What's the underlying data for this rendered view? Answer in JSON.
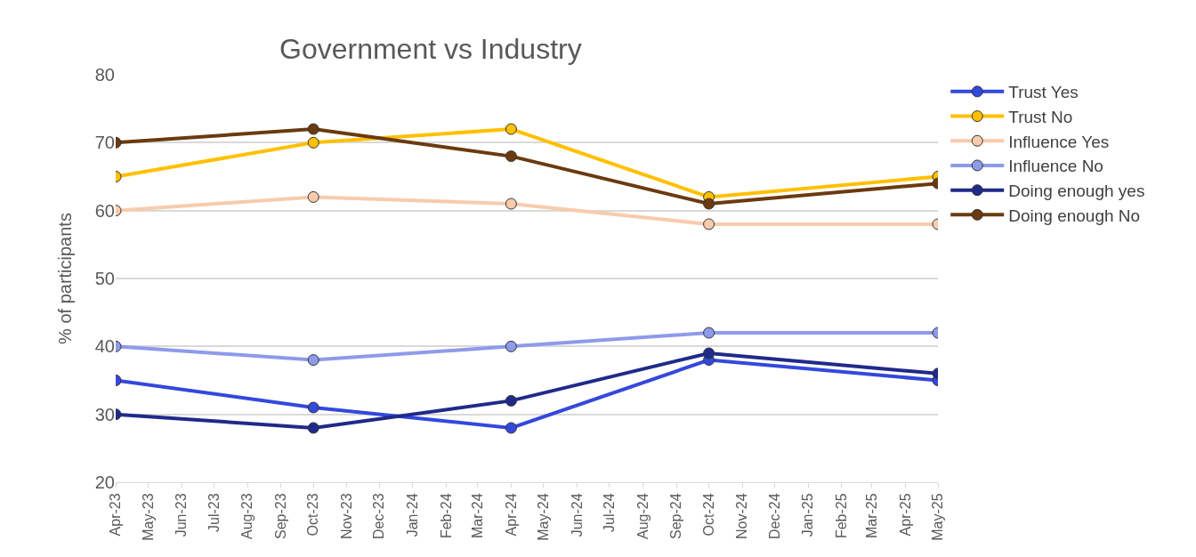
{
  "chart_data": {
    "type": "line",
    "title": "Government vs Industry",
    "ylabel": "% of participants",
    "x": [
      "2023-04",
      "2023-10",
      "2024-04",
      "2024-10",
      "2025-05"
    ],
    "series": [
      {
        "name": "Trust Yes",
        "color": "#3448dc",
        "values": [
          35,
          31,
          28,
          38,
          35
        ]
      },
      {
        "name": "Trust No",
        "color": "#ffc000",
        "values": [
          65,
          70,
          72,
          62,
          65
        ]
      },
      {
        "name": "Influence Yes",
        "color": "#f8cbad",
        "values": [
          60,
          62,
          61,
          58,
          58
        ]
      },
      {
        "name": "Influence No",
        "color": "#8e9aea",
        "values": [
          40,
          38,
          40,
          42,
          42
        ]
      },
      {
        "name": "Doing enough yes",
        "color": "#1f2a8a",
        "values": [
          30,
          28,
          32,
          39,
          36
        ]
      },
      {
        "name": "Doing enough No",
        "color": "#6b3a10",
        "values": [
          70,
          72,
          68,
          61,
          64
        ]
      }
    ],
    "xlim": [
      "2023-04",
      "2025-05"
    ],
    "xticks": [
      {
        "value": "2023-04",
        "label": "Apr-23"
      },
      {
        "value": "2023-05",
        "label": "May-23"
      },
      {
        "value": "2023-06",
        "label": "Jun-23"
      },
      {
        "value": "2023-07",
        "label": "Jul-23"
      },
      {
        "value": "2023-08",
        "label": "Aug-23"
      },
      {
        "value": "2023-09",
        "label": "Sep-23"
      },
      {
        "value": "2023-10",
        "label": "Oct-23"
      },
      {
        "value": "2023-11",
        "label": "Nov-23"
      },
      {
        "value": "2023-12",
        "label": "Dec-23"
      },
      {
        "value": "2024-01",
        "label": "Jan-24"
      },
      {
        "value": "2024-02",
        "label": "Feb-24"
      },
      {
        "value": "2024-03",
        "label": "Mar-24"
      },
      {
        "value": "2024-04",
        "label": "Apr-24"
      },
      {
        "value": "2024-05",
        "label": "May-24"
      },
      {
        "value": "2024-06",
        "label": "Jun-24"
      },
      {
        "value": "2024-07",
        "label": "Jul-24"
      },
      {
        "value": "2024-08",
        "label": "Aug-24"
      },
      {
        "value": "2024-09",
        "label": "Sep-24"
      },
      {
        "value": "2024-10",
        "label": "Oct-24"
      },
      {
        "value": "2024-11",
        "label": "Nov-24"
      },
      {
        "value": "2024-12",
        "label": "Dec-24"
      },
      {
        "value": "2025-01",
        "label": "Jan-25"
      },
      {
        "value": "2025-02",
        "label": "Feb-25"
      },
      {
        "value": "2025-03",
        "label": "Mar-25"
      },
      {
        "value": "2025-04",
        "label": "Apr-25"
      },
      {
        "value": "2025-05",
        "label": "May-25"
      }
    ],
    "ylim": [
      20,
      80
    ],
    "yticks": [
      20,
      30,
      40,
      50,
      60,
      70,
      80
    ],
    "grid": "y",
    "legend": "right",
    "marker": "circle",
    "line_style": "solid"
  }
}
